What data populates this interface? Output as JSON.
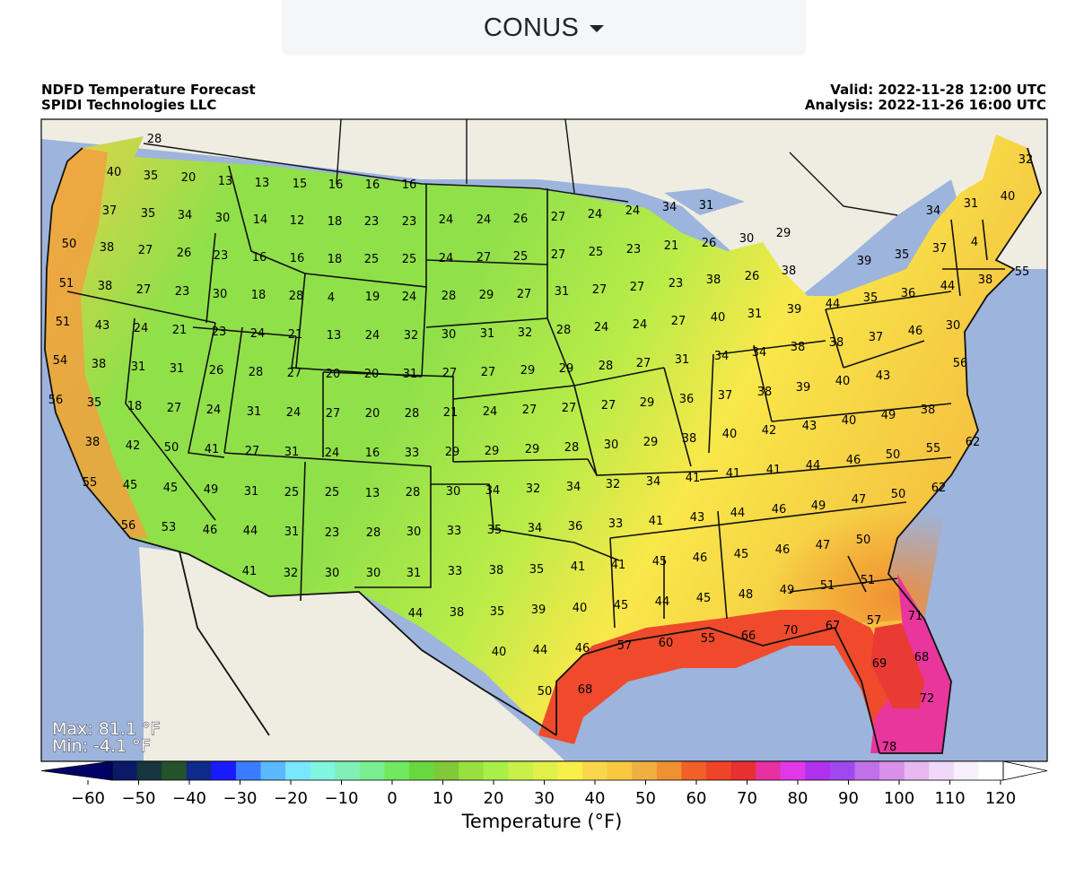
{
  "region_selector": {
    "label": "CONUS"
  },
  "header": {
    "title": "NDFD Temperature Forecast",
    "subtitle": "SPIDI Technologies LLC",
    "valid": "Valid: 2022-11-28 12:00 UTC",
    "analysis": "Analysis: 2022-11-26 16:00 UTC"
  },
  "stats": {
    "max": "Max: 81.1 °F",
    "min": "Min: -4.1 °F"
  },
  "colorbar": {
    "title": "Temperature (°F)",
    "ticks": [
      "−60",
      "−50",
      "−40",
      "−30",
      "−20",
      "−10",
      "0",
      "10",
      "20",
      "30",
      "40",
      "50",
      "60",
      "70",
      "80",
      "90",
      "100",
      "110",
      "120"
    ],
    "colors": [
      "#0a1a66",
      "#17363f",
      "#24522a",
      "#0e2b8a",
      "#1a1aff",
      "#3a7cff",
      "#5ab8ff",
      "#78e8ff",
      "#80f5e0",
      "#80f0b8",
      "#78ee90",
      "#70e860",
      "#68d840",
      "#80c838",
      "#98e040",
      "#a8f048",
      "#c8f048",
      "#e0f048",
      "#f8f048",
      "#f8d848",
      "#f8c840",
      "#f0b040",
      "#f09030",
      "#f06028",
      "#f04428",
      "#e83030",
      "#e830a0",
      "#e038e8",
      "#b030f0",
      "#a048f0",
      "#c070e8",
      "#d890e8",
      "#e8b8f0",
      "#f0d8f8",
      "#f8f0fc",
      "#ffffff"
    ],
    "low_color": "#000066",
    "high_color": "#ffffff"
  },
  "labels": [
    [
      "28",
      172,
      154
    ],
    [
      "40",
      127,
      191
    ],
    [
      "35",
      168,
      195
    ],
    [
      "20",
      210,
      197
    ],
    [
      "13",
      251,
      201
    ],
    [
      "13",
      292,
      203
    ],
    [
      "15",
      334,
      204
    ],
    [
      "16",
      374,
      205
    ],
    [
      "16",
      415,
      205
    ],
    [
      "16",
      456,
      205
    ],
    [
      "37",
      122,
      234
    ],
    [
      "35",
      165,
      237
    ],
    [
      "34",
      206,
      239
    ],
    [
      "30",
      248,
      242
    ],
    [
      "14",
      290,
      244
    ],
    [
      "12",
      331,
      245
    ],
    [
      "18",
      373,
      246
    ],
    [
      "23",
      414,
      246
    ],
    [
      "23",
      456,
      246
    ],
    [
      "24",
      497,
      244
    ],
    [
      "24",
      539,
      244
    ],
    [
      "26",
      580,
      243
    ],
    [
      "27",
      622,
      241
    ],
    [
      "24",
      663,
      238
    ],
    [
      "24",
      705,
      234
    ],
    [
      "34",
      746,
      230
    ],
    [
      "31",
      787,
      228
    ],
    [
      "31",
      1082,
      226
    ],
    [
      "32",
      1143,
      177
    ],
    [
      "40",
      1123,
      218
    ],
    [
      "50",
      77,
      271
    ],
    [
      "38",
      119,
      275
    ],
    [
      "27",
      162,
      278
    ],
    [
      "26",
      205,
      281
    ],
    [
      "23",
      246,
      284
    ],
    [
      "16",
      289,
      286
    ],
    [
      "16",
      331,
      287
    ],
    [
      "18",
      373,
      288
    ],
    [
      "25",
      414,
      288
    ],
    [
      "25",
      456,
      288
    ],
    [
      "24",
      497,
      287
    ],
    [
      "27",
      539,
      286
    ],
    [
      "25",
      580,
      285
    ],
    [
      "27",
      622,
      283
    ],
    [
      "25",
      664,
      280
    ],
    [
      "23",
      706,
      277
    ],
    [
      "21",
      748,
      273
    ],
    [
      "26",
      790,
      270
    ],
    [
      "30",
      832,
      265
    ],
    [
      "29",
      873,
      259
    ],
    [
      "34",
      1040,
      234
    ],
    [
      "37",
      1047,
      276
    ],
    [
      "4",
      1086,
      269
    ],
    [
      "35",
      1005,
      283
    ],
    [
      "39",
      963,
      290
    ],
    [
      "55",
      1139,
      302
    ],
    [
      "51",
      74,
      315
    ],
    [
      "38",
      117,
      318
    ],
    [
      "27",
      160,
      322
    ],
    [
      "23",
      203,
      324
    ],
    [
      "30",
      245,
      327
    ],
    [
      "18",
      288,
      328
    ],
    [
      "28",
      330,
      329
    ],
    [
      "4",
      369,
      331
    ],
    [
      "19",
      415,
      330
    ],
    [
      "24",
      456,
      330
    ],
    [
      "28",
      500,
      329
    ],
    [
      "29",
      542,
      328
    ],
    [
      "27",
      584,
      327
    ],
    [
      "31",
      626,
      324
    ],
    [
      "27",
      668,
      322
    ],
    [
      "27",
      710,
      319
    ],
    [
      "23",
      753,
      315
    ],
    [
      "38",
      795,
      311
    ],
    [
      "26",
      838,
      307
    ],
    [
      "38",
      879,
      301
    ],
    [
      "44",
      1056,
      318
    ],
    [
      "36",
      1012,
      326
    ],
    [
      "35",
      970,
      331
    ],
    [
      "44",
      928,
      338
    ],
    [
      "38",
      1098,
      311
    ],
    [
      "51",
      70,
      358
    ],
    [
      "43",
      114,
      362
    ],
    [
      "24",
      157,
      365
    ],
    [
      "21",
      200,
      367
    ],
    [
      "23",
      244,
      369
    ],
    [
      "24",
      287,
      371
    ],
    [
      "21",
      329,
      372
    ],
    [
      "13",
      372,
      373
    ],
    [
      "24",
      415,
      373
    ],
    [
      "32",
      458,
      373
    ],
    [
      "30",
      500,
      372
    ],
    [
      "31",
      543,
      371
    ],
    [
      "32",
      585,
      370
    ],
    [
      "28",
      628,
      367
    ],
    [
      "24",
      670,
      364
    ],
    [
      "24",
      713,
      361
    ],
    [
      "27",
      756,
      357
    ],
    [
      "40",
      800,
      353
    ],
    [
      "31",
      841,
      349
    ],
    [
      "39",
      885,
      344
    ],
    [
      "30",
      1062,
      362
    ],
    [
      "46",
      1020,
      368
    ],
    [
      "37",
      976,
      375
    ],
    [
      "38",
      932,
      381
    ],
    [
      "38",
      889,
      386
    ],
    [
      "54",
      67,
      401
    ],
    [
      "38",
      110,
      405
    ],
    [
      "31",
      154,
      408
    ],
    [
      "31",
      197,
      410
    ],
    [
      "26",
      241,
      412
    ],
    [
      "28",
      285,
      414
    ],
    [
      "27",
      328,
      415
    ],
    [
      "20",
      371,
      416
    ],
    [
      "20",
      414,
      416
    ],
    [
      "31",
      457,
      416
    ],
    [
      "27",
      501,
      415
    ],
    [
      "27",
      544,
      414
    ],
    [
      "29",
      588,
      412
    ],
    [
      "29",
      631,
      410
    ],
    [
      "28",
      675,
      407
    ],
    [
      "27",
      717,
      404
    ],
    [
      "31",
      760,
      400
    ],
    [
      "34",
      804,
      396
    ],
    [
      "34",
      846,
      392
    ],
    [
      "56",
      1070,
      404
    ],
    [
      "43",
      984,
      418
    ],
    [
      "40",
      939,
      424
    ],
    [
      "56",
      62,
      445
    ],
    [
      "35",
      105,
      448
    ],
    [
      "18",
      150,
      452
    ],
    [
      "27",
      194,
      454
    ],
    [
      "24",
      238,
      456
    ],
    [
      "31",
      283,
      458
    ],
    [
      "24",
      327,
      459
    ],
    [
      "27",
      371,
      460
    ],
    [
      "20",
      415,
      460
    ],
    [
      "28",
      459,
      460
    ],
    [
      "21",
      502,
      459
    ],
    [
      "24",
      546,
      458
    ],
    [
      "27",
      590,
      456
    ],
    [
      "27",
      634,
      454
    ],
    [
      "27",
      678,
      451
    ],
    [
      "29",
      721,
      448
    ],
    [
      "36",
      765,
      444
    ],
    [
      "37",
      808,
      440
    ],
    [
      "38",
      852,
      436
    ],
    [
      "39",
      895,
      431
    ],
    [
      "49",
      990,
      462
    ],
    [
      "40",
      946,
      468
    ],
    [
      "43",
      902,
      474
    ],
    [
      "38",
      1034,
      456
    ],
    [
      "38",
      103,
      492
    ],
    [
      "42",
      148,
      496
    ],
    [
      "50",
      191,
      498
    ],
    [
      "41",
      236,
      500
    ],
    [
      "27",
      281,
      502
    ],
    [
      "31",
      325,
      503
    ],
    [
      "24",
      370,
      504
    ],
    [
      "16",
      415,
      504
    ],
    [
      "33",
      459,
      504
    ],
    [
      "29",
      504,
      503
    ],
    [
      "29",
      548,
      502
    ],
    [
      "29",
      593,
      500
    ],
    [
      "28",
      637,
      498
    ],
    [
      "30",
      681,
      495
    ],
    [
      "29",
      725,
      492
    ],
    [
      "38",
      768,
      488
    ],
    [
      "40",
      813,
      483
    ],
    [
      "42",
      857,
      479
    ],
    [
      "62",
      1084,
      492
    ],
    [
      "50",
      995,
      506
    ],
    [
      "55",
      1040,
      499
    ],
    [
      "46",
      951,
      512
    ],
    [
      "44",
      906,
      518
    ],
    [
      "55",
      100,
      537
    ],
    [
      "45",
      145,
      540
    ],
    [
      "45",
      190,
      543
    ],
    [
      "49",
      235,
      545
    ],
    [
      "31",
      280,
      547
    ],
    [
      "25",
      325,
      548
    ],
    [
      "25",
      370,
      548
    ],
    [
      "13",
      415,
      549
    ],
    [
      "28",
      460,
      548
    ],
    [
      "30",
      505,
      547
    ],
    [
      "34",
      549,
      546
    ],
    [
      "32",
      594,
      544
    ],
    [
      "34",
      639,
      542
    ],
    [
      "32",
      683,
      539
    ],
    [
      "34",
      728,
      536
    ],
    [
      "41",
      772,
      532
    ],
    [
      "41",
      817,
      527
    ],
    [
      "41",
      862,
      523
    ],
    [
      "62",
      1046,
      543
    ],
    [
      "50",
      1001,
      550
    ],
    [
      "47",
      957,
      556
    ],
    [
      "49",
      912,
      563
    ],
    [
      "56",
      143,
      585
    ],
    [
      "53",
      188,
      587
    ],
    [
      "46",
      234,
      590
    ],
    [
      "44",
      279,
      591
    ],
    [
      "31",
      325,
      592
    ],
    [
      "23",
      370,
      593
    ],
    [
      "28",
      416,
      593
    ],
    [
      "30",
      461,
      592
    ],
    [
      "33",
      506,
      591
    ],
    [
      "35",
      551,
      590
    ],
    [
      "34",
      596,
      588
    ],
    [
      "36",
      641,
      586
    ],
    [
      "33",
      686,
      583
    ],
    [
      "41",
      731,
      580
    ],
    [
      "43",
      777,
      576
    ],
    [
      "44",
      822,
      571
    ],
    [
      "46",
      868,
      567
    ],
    [
      "50",
      962,
      601
    ],
    [
      "47",
      917,
      607
    ],
    [
      "46",
      872,
      612
    ],
    [
      "45",
      826,
      617
    ],
    [
      "41",
      278,
      636
    ],
    [
      "32",
      324,
      638
    ],
    [
      "30",
      370,
      638
    ],
    [
      "30",
      416,
      638
    ],
    [
      "31",
      461,
      638
    ],
    [
      "33",
      507,
      636
    ],
    [
      "38",
      553,
      635
    ],
    [
      "35",
      598,
      634
    ],
    [
      "41",
      644,
      631
    ],
    [
      "41",
      689,
      629
    ],
    [
      "45",
      735,
      625
    ],
    [
      "46",
      780,
      621
    ],
    [
      "51",
      967,
      646
    ],
    [
      "51",
      922,
      652
    ],
    [
      "49",
      877,
      657
    ],
    [
      "48",
      831,
      662
    ],
    [
      "44",
      463,
      683
    ],
    [
      "38",
      509,
      682
    ],
    [
      "35",
      554,
      681
    ],
    [
      "39",
      600,
      679
    ],
    [
      "40",
      646,
      677
    ],
    [
      "45",
      692,
      674
    ],
    [
      "44",
      738,
      670
    ],
    [
      "45",
      784,
      666
    ],
    [
      "71",
      1020,
      686
    ],
    [
      "57",
      974,
      691
    ],
    [
      "67",
      928,
      697
    ],
    [
      "70",
      881,
      702
    ],
    [
      "66",
      834,
      708
    ],
    [
      "55",
      789,
      711
    ],
    [
      "60",
      742,
      716
    ],
    [
      "57",
      696,
      719
    ],
    [
      "40",
      556,
      726
    ],
    [
      "44",
      602,
      724
    ],
    [
      "46",
      649,
      722
    ],
    [
      "69",
      980,
      739
    ],
    [
      "68",
      1027,
      732
    ],
    [
      "50",
      607,
      770
    ],
    [
      "68",
      652,
      768
    ],
    [
      "72",
      1033,
      778
    ],
    [
      "78",
      991,
      832
    ]
  ]
}
